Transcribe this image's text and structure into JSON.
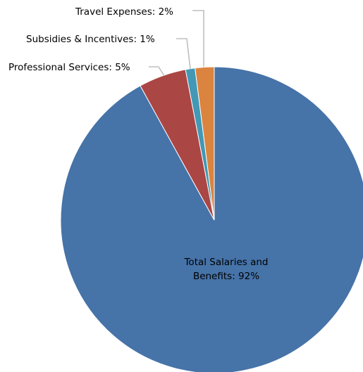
{
  "chart_data": {
    "type": "pie",
    "title": "",
    "slices": [
      {
        "label": "Total Salaries and Benefits",
        "value": 92,
        "pct_label": "92%",
        "color": "#4673a8"
      },
      {
        "label": "Professional Services",
        "value": 5,
        "pct_label": "5%",
        "color": "#aa4644"
      },
      {
        "label": "Subsidies & Incentives",
        "value": 1,
        "pct_label": "1%",
        "color": "#4298b5"
      },
      {
        "label": "Travel Expenses",
        "value": 2,
        "pct_label": "2%",
        "color": "#db8440"
      }
    ],
    "start_angle_deg": 0,
    "direction": "clockwise",
    "legend": "none",
    "data_labels": {
      "salaries_line1": "Total Salaries and",
      "salaries_line2": "Benefits: 92%",
      "professional": "Professional Services: 5%",
      "subsidies": "Subsidies & Incentives: 1%",
      "travel": "Travel Expenses: 2%"
    }
  }
}
